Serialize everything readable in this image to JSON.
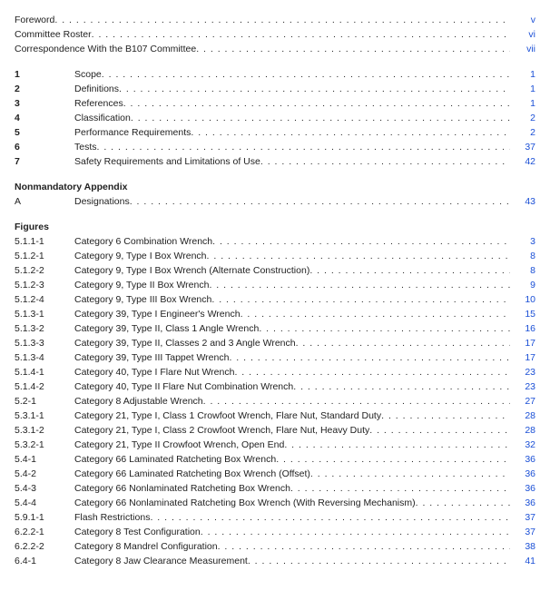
{
  "frontmatter": [
    {
      "section": "",
      "title": "Foreword",
      "page": "v"
    },
    {
      "section": "",
      "title": "Committee Roster",
      "page": "vi"
    },
    {
      "section": "",
      "title": "Correspondence With the B107 Committee",
      "page": "vii"
    }
  ],
  "sections": [
    {
      "section": "1",
      "title": "Scope",
      "page": "1"
    },
    {
      "section": "2",
      "title": "Definitions",
      "page": "1"
    },
    {
      "section": "3",
      "title": "References",
      "page": "1"
    },
    {
      "section": "4",
      "title": "Classification",
      "page": "2"
    },
    {
      "section": "5",
      "title": "Performance Requirements",
      "page": "2"
    },
    {
      "section": "6",
      "title": "Tests",
      "page": "37"
    },
    {
      "section": "7",
      "title": "Safety Requirements and Limitations of Use",
      "page": "42"
    }
  ],
  "appendix_head": "Nonmandatory Appendix",
  "appendix": [
    {
      "section": "A",
      "title": "Designations",
      "page": "43"
    }
  ],
  "figures_head": "Figures",
  "figures": [
    {
      "section": "5.1.1-1",
      "title": "Category 6 Combination Wrench",
      "page": "3"
    },
    {
      "section": "5.1.2-1",
      "title": "Category 9, Type I Box Wrench",
      "page": "8"
    },
    {
      "section": "5.1.2-2",
      "title": "Category 9, Type I Box Wrench (Alternate Construction)",
      "page": "8"
    },
    {
      "section": "5.1.2-3",
      "title": "Category 9, Type II Box Wrench",
      "page": "9"
    },
    {
      "section": "5.1.2-4",
      "title": "Category 9, Type III Box Wrench",
      "page": "10"
    },
    {
      "section": "5.1.3-1",
      "title": "Category 39, Type I Engineer's Wrench",
      "page": "15"
    },
    {
      "section": "5.1.3-2",
      "title": "Category 39, Type II, Class 1 Angle Wrench",
      "page": "16"
    },
    {
      "section": "5.1.3-3",
      "title": "Category 39, Type II, Classes 2 and 3 Angle Wrench",
      "page": "17"
    },
    {
      "section": "5.1.3-4",
      "title": "Category 39, Type III Tappet Wrench",
      "page": "17"
    },
    {
      "section": "5.1.4-1",
      "title": "Category 40, Type I Flare Nut Wrench",
      "page": "23"
    },
    {
      "section": "5.1.4-2",
      "title": "Category 40, Type II Flare Nut Combination Wrench",
      "page": "23"
    },
    {
      "section": "5.2-1",
      "title": "Category 8 Adjustable Wrench",
      "page": "27"
    },
    {
      "section": "5.3.1-1",
      "title": "Category 21, Type I, Class 1 Crowfoot Wrench, Flare Nut, Standard Duty",
      "page": "28"
    },
    {
      "section": "5.3.1-2",
      "title": "Category 21, Type I, Class 2 Crowfoot Wrench, Flare Nut, Heavy Duty",
      "page": "28"
    },
    {
      "section": "5.3.2-1",
      "title": "Category 21, Type II Crowfoot Wrench, Open End",
      "page": "32"
    },
    {
      "section": "5.4-1",
      "title": "Category 66 Laminated Ratcheting Box Wrench",
      "page": "36"
    },
    {
      "section": "5.4-2",
      "title": "Category 66 Laminated Ratcheting Box Wrench (Offset)",
      "page": "36"
    },
    {
      "section": "5.4-3",
      "title": "Category 66 Nonlaminated Ratcheting Box Wrench",
      "page": "36"
    },
    {
      "section": "5.4-4",
      "title": "Category 66 Nonlaminated Ratcheting Box Wrench (With Reversing Mechanism)",
      "page": "36"
    },
    {
      "section": "5.9.1-1",
      "title": "Flash Restrictions",
      "page": "37"
    },
    {
      "section": "6.2.2-1",
      "title": "Category 8 Test Configuration",
      "page": "37"
    },
    {
      "section": "6.2.2-2",
      "title": "Category 8 Mandrel Configuration",
      "page": "38"
    },
    {
      "section": "6.4-1",
      "title": "Category 8 Jaw Clearance Measurement",
      "page": "41"
    }
  ]
}
